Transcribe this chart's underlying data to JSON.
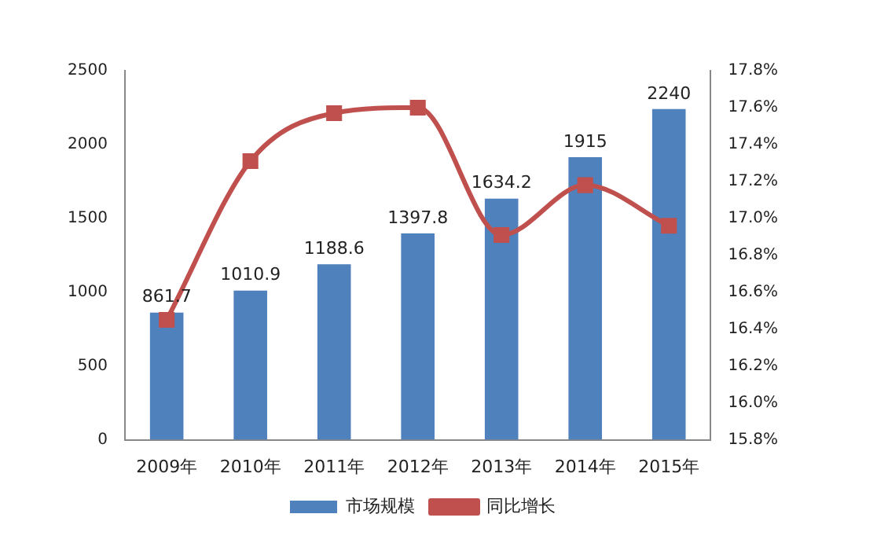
{
  "chart_data": {
    "type": "bar",
    "categories": [
      "2009年",
      "2010年",
      "2011年",
      "2012年",
      "2013年",
      "2014年",
      "2015年"
    ],
    "series": [
      {
        "name": "市场规模",
        "color": "#4f81bd",
        "values": [
          861.7,
          1010.9,
          1188.6,
          1397.8,
          1634.2,
          1915,
          2240
        ],
        "data_labels": true
      },
      {
        "name": "同比增长",
        "type": "line",
        "axis": "y2",
        "color": "#c0504d",
        "marker": "square",
        "values": [
          16.45,
          17.31,
          17.57,
          17.6,
          16.91,
          17.18,
          16.96
        ]
      }
    ],
    "ylim": [
      0,
      2500
    ],
    "yticks": [
      0,
      500,
      1000,
      1500,
      2000,
      2500
    ],
    "y2lim": [
      15.8,
      17.8
    ],
    "y2ticks": [
      {
        "value": 15.8,
        "label": "15.8%"
      },
      {
        "value": 16,
        "label": "16.0%"
      },
      {
        "value": 16.2,
        "label": "16.2%"
      },
      {
        "value": 16.4,
        "label": "16.4%"
      },
      {
        "value": 16.6,
        "label": "16.6%"
      },
      {
        "value": 16.8,
        "label": "16.8%"
      },
      {
        "value": 17,
        "label": "17.0%"
      },
      {
        "value": 17.2,
        "label": "17.2%"
      },
      {
        "value": 17.4,
        "label": "17.4%"
      },
      {
        "value": 17.6,
        "label": "17.6%"
      },
      {
        "value": 17.8,
        "label": "17.8%"
      }
    ],
    "grid": false,
    "legend": "bottom"
  }
}
